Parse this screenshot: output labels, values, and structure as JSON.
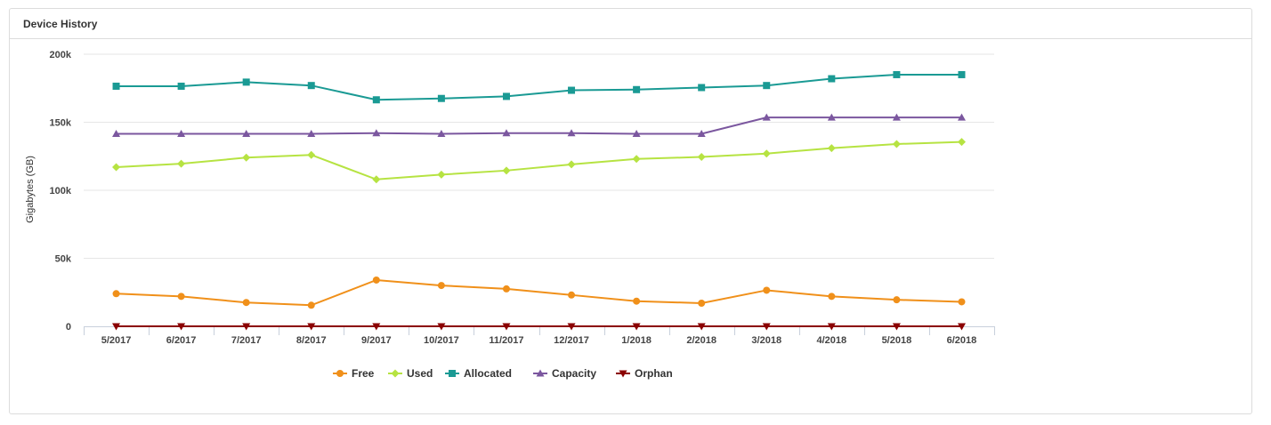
{
  "panel": {
    "title": "Device History"
  },
  "chart_data": {
    "type": "line",
    "ylabel": "Gigabytes (GB)",
    "ylim": [
      0,
      200000
    ],
    "yticks": [
      "0",
      "50k",
      "100k",
      "150k",
      "200k"
    ],
    "ytick_values": [
      0,
      50000,
      100000,
      150000,
      200000
    ],
    "categories": [
      "5/2017",
      "6/2017",
      "7/2017",
      "8/2017",
      "9/2017",
      "10/2017",
      "11/2017",
      "12/2017",
      "1/2018",
      "2/2018",
      "3/2018",
      "4/2018",
      "5/2018",
      "6/2018"
    ],
    "grid": true,
    "legend_position": "bottom-center",
    "series": [
      {
        "name": "Free",
        "color": "#f0901a",
        "marker": "circle",
        "values": [
          24000,
          22000,
          17500,
          15500,
          34000,
          30000,
          27500,
          23000,
          18500,
          17000,
          26500,
          22000,
          19500,
          18000
        ]
      },
      {
        "name": "Used",
        "color": "#b6e342",
        "marker": "diamond",
        "values": [
          117000,
          119500,
          124000,
          126000,
          108000,
          111500,
          114500,
          119000,
          123000,
          124500,
          127000,
          131000,
          134000,
          135500
        ]
      },
      {
        "name": "Allocated",
        "color": "#1a9a94",
        "marker": "square",
        "values": [
          176500,
          176500,
          179500,
          177000,
          166500,
          167500,
          169000,
          173500,
          174000,
          175500,
          177000,
          182000,
          185000,
          185000
        ]
      },
      {
        "name": "Capacity",
        "color": "#7b579f",
        "marker": "triangle",
        "values": [
          141500,
          141500,
          141500,
          141500,
          142000,
          141500,
          142000,
          142000,
          141500,
          141500,
          153500,
          153500,
          153500,
          153500
        ]
      },
      {
        "name": "Orphan",
        "color": "#8b0000",
        "marker": "triangle-down",
        "values": [
          0,
          0,
          0,
          0,
          0,
          0,
          0,
          0,
          0,
          0,
          0,
          0,
          0,
          0
        ]
      }
    ]
  }
}
